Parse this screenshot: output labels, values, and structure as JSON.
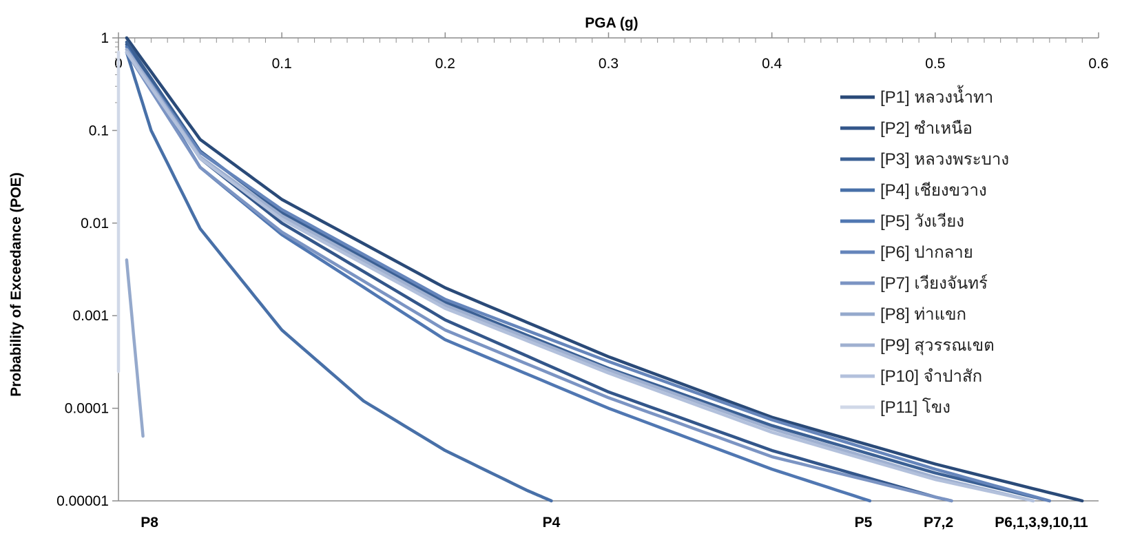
{
  "chart_data": {
    "type": "line",
    "title": "",
    "xlabel": "PGA (g)",
    "ylabel": "Probability of Exceedance (POE)",
    "x_axis_position": "top",
    "y_scale": "log",
    "xlim": [
      0,
      0.6
    ],
    "ylim": [
      1e-05,
      1
    ],
    "x_ticks": [
      "0",
      "0.1",
      "0.2",
      "0.3",
      "0.4",
      "0.5",
      "0.6"
    ],
    "y_ticks": [
      "1",
      "0.1",
      "0.01",
      "0.001",
      "0.0001",
      "0.00001"
    ],
    "grid": false,
    "legend_position": "right",
    "series": [
      {
        "name": "[P1] หลวงน้ำทา",
        "color": "#2a4a78",
        "x": [
          0.005,
          0.05,
          0.1,
          0.2,
          0.3,
          0.4,
          0.5,
          0.55,
          0.59
        ],
        "y": [
          1,
          0.08,
          0.018,
          0.002,
          0.00036,
          8e-05,
          2.5e-05,
          1.5e-05,
          1e-05
        ]
      },
      {
        "name": "[P2] ซำเหนือ",
        "color": "#33568a",
        "x": [
          0.005,
          0.05,
          0.1,
          0.2,
          0.3,
          0.4,
          0.5,
          0.51
        ],
        "y": [
          0.85,
          0.05,
          0.01,
          0.0009,
          0.00015,
          3.5e-05,
          1.1e-05,
          1e-05
        ]
      },
      {
        "name": "[P3] หลวงพระบาง",
        "color": "#3b6094",
        "x": [
          0.005,
          0.05,
          0.1,
          0.2,
          0.3,
          0.4,
          0.5,
          0.57
        ],
        "y": [
          0.9,
          0.06,
          0.013,
          0.0014,
          0.00027,
          6.5e-05,
          2e-05,
          1e-05
        ]
      },
      {
        "name": "[P4] เชียงขวาง",
        "color": "#4870a8",
        "x": [
          0.005,
          0.02,
          0.05,
          0.1,
          0.15,
          0.2,
          0.25,
          0.265
        ],
        "y": [
          0.7,
          0.1,
          0.0087,
          0.0007,
          0.00012,
          3.5e-05,
          1.3e-05,
          1e-05
        ]
      },
      {
        "name": "[P5] วังเวียง",
        "color": "#5077b2",
        "x": [
          0.005,
          0.05,
          0.1,
          0.2,
          0.3,
          0.4,
          0.46
        ],
        "y": [
          0.8,
          0.04,
          0.0075,
          0.00055,
          0.0001,
          2.2e-05,
          1e-05
        ]
      },
      {
        "name": "[P6] ปากลาย",
        "color": "#6585bb",
        "x": [
          0.005,
          0.05,
          0.1,
          0.2,
          0.3,
          0.4,
          0.5,
          0.57
        ],
        "y": [
          0.75,
          0.058,
          0.014,
          0.0015,
          0.00032,
          7.5e-05,
          2.2e-05,
          1e-05
        ]
      },
      {
        "name": "[P7] เวียงจันทร์",
        "color": "#7b94c3",
        "x": [
          0.005,
          0.05,
          0.1,
          0.2,
          0.3,
          0.4,
          0.5,
          0.51
        ],
        "y": [
          0.7,
          0.04,
          0.008,
          0.0007,
          0.00013,
          3e-05,
          1.1e-05,
          1e-05
        ]
      },
      {
        "name": "[P8] ท่าแขก",
        "color": "#95a9cc",
        "x": [
          0.005,
          0.015
        ],
        "y": [
          0.004,
          5e-05
        ]
      },
      {
        "name": "[P9] สุวรรณเขต",
        "color": "#9fb0d0",
        "x": [
          0.005,
          0.05,
          0.1,
          0.2,
          0.3,
          0.4,
          0.5,
          0.56
        ],
        "y": [
          0.75,
          0.052,
          0.012,
          0.0013,
          0.00026,
          6e-05,
          1.8e-05,
          1e-05
        ]
      },
      {
        "name": "[P10] จำปาสัก",
        "color": "#b3c1dc",
        "x": [
          0.005,
          0.05,
          0.1,
          0.2,
          0.3,
          0.4,
          0.5,
          0.56
        ],
        "y": [
          0.7,
          0.05,
          0.011,
          0.0012,
          0.00024,
          5.5e-05,
          1.7e-05,
          1e-05
        ]
      },
      {
        "name": "[P11] โขง",
        "color": "#d0d8e8",
        "x": [
          0.0,
          0.0
        ],
        "y": [
          0.7,
          0.00025
        ]
      }
    ],
    "annotations": [
      "P8",
      "P4",
      "P5",
      "P7,2",
      "P6,1,3,9,10,11"
    ]
  }
}
